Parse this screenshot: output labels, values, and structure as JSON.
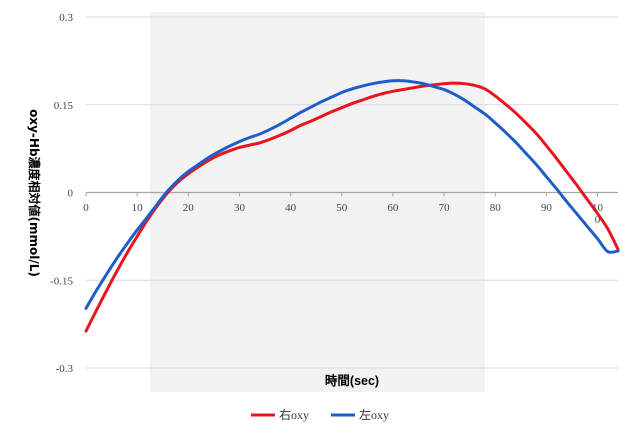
{
  "chart_data": {
    "type": "line",
    "xlabel": "時間(sec)",
    "ylabel": "oxy-Hb濃度相対値(mmol/L)",
    "xlim": [
      0,
      104
    ],
    "ylim": [
      -0.3,
      0.3
    ],
    "x_ticks": [
      "0",
      "10",
      "20",
      "30",
      "40",
      "50",
      "60",
      "70",
      "80",
      "90",
      "10\n0"
    ],
    "x_tick_values": [
      0,
      10,
      20,
      30,
      40,
      50,
      60,
      70,
      80,
      90,
      100
    ],
    "y_ticks": [
      "0.3",
      "0.15",
      "0",
      "-0.15",
      "-0.3"
    ],
    "y_tick_values": [
      0.3,
      0.15,
      0,
      -0.15,
      -0.3
    ],
    "grid": "horizontal",
    "legend_position": "bottom",
    "shaded_region": {
      "x_start": 12.5,
      "x_end": 78
    },
    "shaded_color": "#f2f2f2",
    "series": [
      {
        "name": "右oxy",
        "color": "#e8151f",
        "x": [
          0,
          2,
          4,
          6,
          8,
          10,
          12,
          14,
          16,
          18,
          20,
          22,
          24,
          26,
          28,
          30,
          32,
          34,
          36,
          38,
          40,
          42,
          44,
          46,
          48,
          50,
          52,
          54,
          56,
          58,
          60,
          62,
          64,
          66,
          68,
          70,
          72,
          74,
          76,
          78,
          80,
          82,
          84,
          86,
          88,
          90,
          92,
          94,
          96,
          98,
          100,
          102,
          104
        ],
        "values": [
          -0.237,
          -0.202,
          -0.168,
          -0.135,
          -0.104,
          -0.075,
          -0.047,
          -0.022,
          0.0,
          0.018,
          0.032,
          0.044,
          0.055,
          0.064,
          0.071,
          0.077,
          0.081,
          0.085,
          0.091,
          0.098,
          0.106,
          0.115,
          0.122,
          0.13,
          0.138,
          0.145,
          0.152,
          0.158,
          0.164,
          0.169,
          0.173,
          0.176,
          0.179,
          0.182,
          0.184,
          0.186,
          0.187,
          0.186,
          0.183,
          0.177,
          0.165,
          0.151,
          0.136,
          0.119,
          0.101,
          0.08,
          0.058,
          0.035,
          0.012,
          -0.012,
          -0.036,
          -0.062,
          -0.097
        ]
      },
      {
        "name": "左oxy",
        "color": "#1f5dc9",
        "x": [
          0,
          2,
          4,
          6,
          8,
          10,
          12,
          14,
          16,
          18,
          20,
          22,
          24,
          26,
          28,
          30,
          32,
          34,
          36,
          38,
          40,
          42,
          44,
          46,
          48,
          50,
          52,
          54,
          56,
          58,
          60,
          62,
          64,
          66,
          68,
          70,
          72,
          74,
          76,
          78,
          80,
          82,
          84,
          86,
          88,
          90,
          92,
          94,
          96,
          98,
          100,
          102,
          104
        ],
        "values": [
          -0.198,
          -0.168,
          -0.14,
          -0.113,
          -0.088,
          -0.064,
          -0.042,
          -0.019,
          0.003,
          0.021,
          0.036,
          0.048,
          0.06,
          0.07,
          0.079,
          0.087,
          0.094,
          0.1,
          0.108,
          0.117,
          0.127,
          0.137,
          0.146,
          0.155,
          0.163,
          0.171,
          0.177,
          0.182,
          0.186,
          0.189,
          0.191,
          0.191,
          0.189,
          0.186,
          0.181,
          0.176,
          0.168,
          0.158,
          0.146,
          0.134,
          0.119,
          0.103,
          0.086,
          0.067,
          0.048,
          0.027,
          0.006,
          -0.016,
          -0.037,
          -0.058,
          -0.079,
          -0.101,
          -0.1
        ]
      }
    ]
  }
}
